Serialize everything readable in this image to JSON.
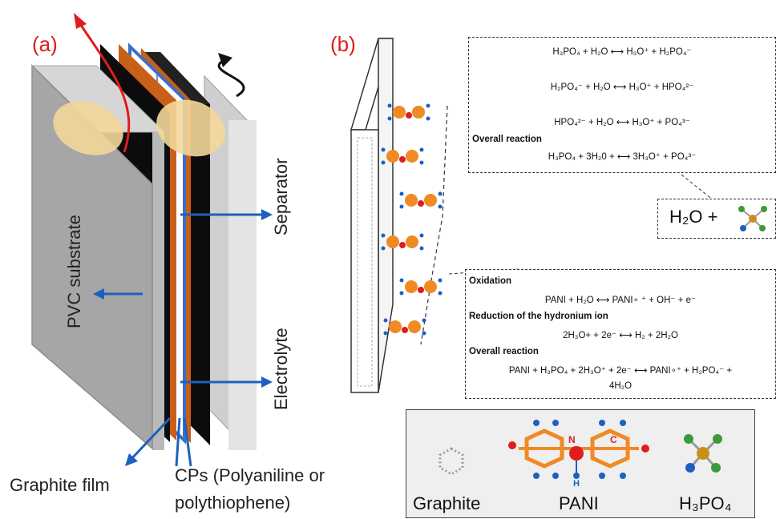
{
  "panel_a": {
    "label": "(a)",
    "separator_label": "Separator",
    "electrolyte_label": "Electrolyte",
    "substrate_label": "PVC substrate",
    "graphite_label": "Graphite film",
    "cps_label_line1": "CPs (Polyaniline or",
    "cps_label_line2": "polythiophene)"
  },
  "panel_b": {
    "label": "(b)",
    "top_box": {
      "eq1": "H₃PO₄ + H₂O ⟷ H₃O⁺ + H₂PO₄⁻",
      "eq2": "H₂PO₄⁻ + H₂O ⟷ H₃O⁺ + HPO₄²⁻",
      "eq3": "HPO₄²⁻ + H₂O ⟷ H₃O⁺ + PO₄³⁻",
      "heading": "Overall reaction",
      "eq4": "H₃PO₄ + 3H₂0 + ⟷ 3H₃O⁺ + PO₄³⁻"
    },
    "water_box": {
      "text": "H₂O +"
    },
    "bottom_box": {
      "heading1": "Oxidation",
      "eq1": "PANI + H₂O ⟷ PANI∘ ⁺ + OH⁻ + e⁻",
      "heading2": "Reduction of the hydronium ion",
      "eq2": "2H₃O+ + 2e⁻ ⟷ H₂ + 2H₂O",
      "heading3": "Overall reaction",
      "eq3_line1": "PANI + H₃PO₄ + 2H₃O⁺ + 2e⁻ ⟷ PANI∘⁺ + H₂PO₄⁻ +",
      "eq3_line2": "4H₂O"
    },
    "legend": {
      "graphite": "Graphite",
      "pani": "PANI",
      "h3po4": "H₃PO₄",
      "n_atom": "N",
      "c_atom": "C",
      "h_atom": "H"
    }
  },
  "colors": {
    "accent_red": "#e01c1c",
    "arrow_blue": "#1f5fbf",
    "pani_orange": "#f08a24",
    "polymer_copper": "#c8601a",
    "separator_blue": "#3a6fc7",
    "pvc_gray": "#9a9a9a"
  }
}
